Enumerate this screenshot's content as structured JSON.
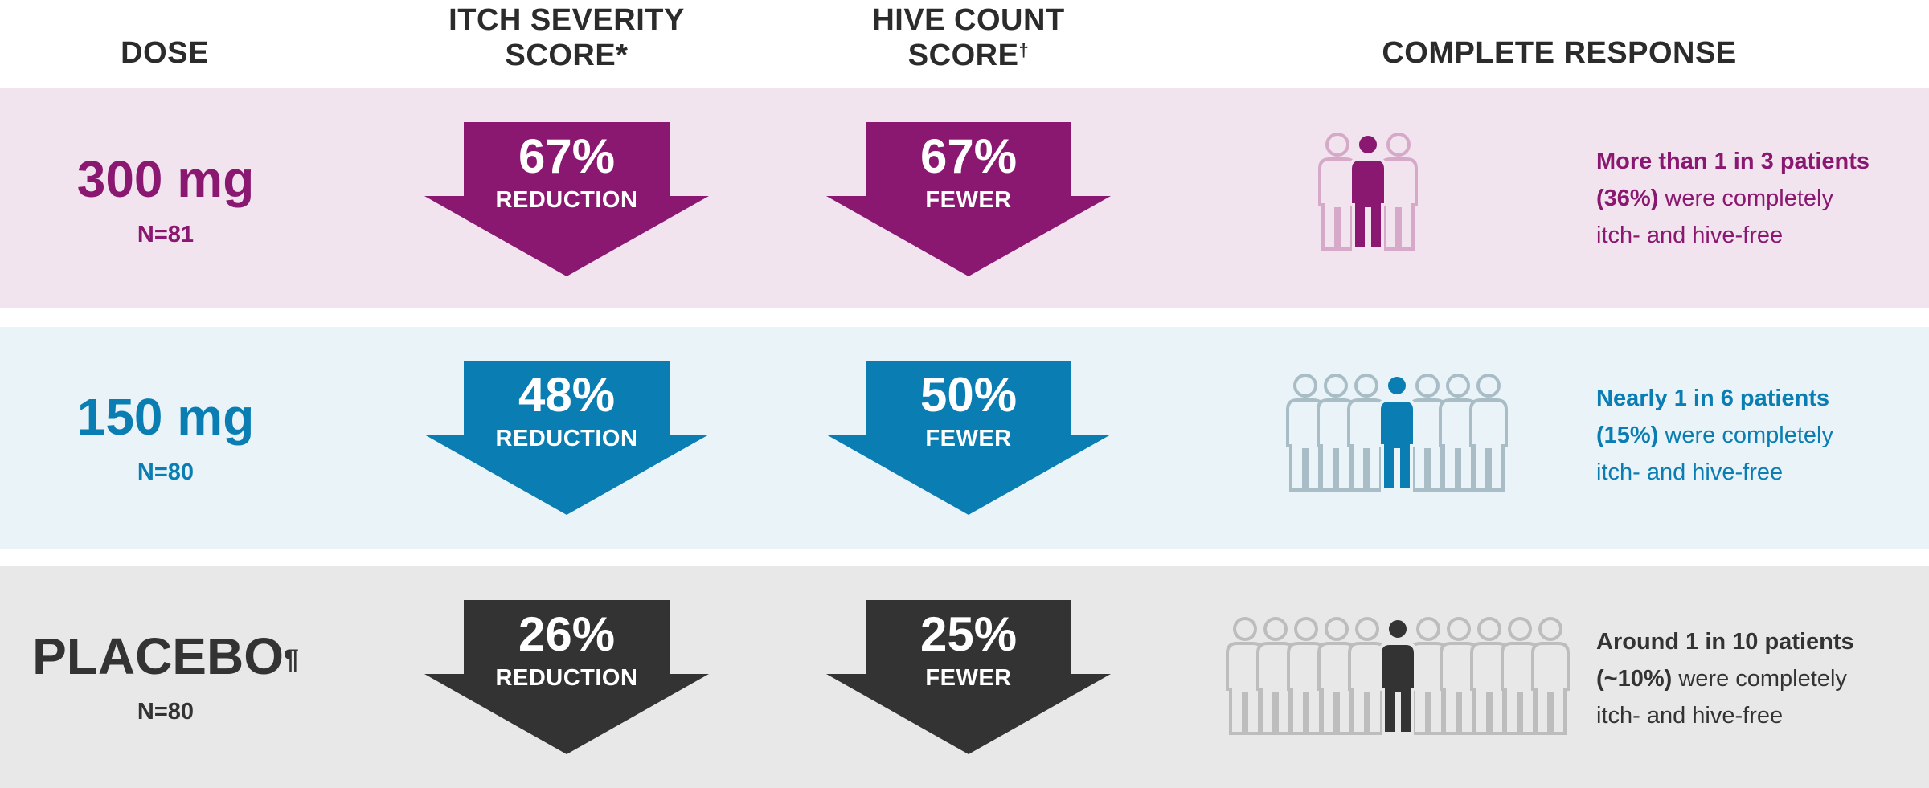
{
  "headers": {
    "dose": "DOSE",
    "itch_line1": "ITCH SEVERITY",
    "itch_line2": "SCORE",
    "itch_mark": "*",
    "hive_line1": "HIVE COUNT",
    "hive_line2": "SCORE",
    "hive_mark": "†",
    "complete": "COMPLETE RESPONSE"
  },
  "rows": [
    {
      "dose": "300 mg",
      "dose_mark": "",
      "n": "N=81",
      "itch_pct": "67%",
      "itch_label": "REDUCTION",
      "hive_pct": "67%",
      "hive_label": "FEWER",
      "resp_bold1": "More than 1 in 3 patients",
      "resp_bold2": "(36%)",
      "resp_text2": " were completely",
      "resp_text3": "itch- and hive-free",
      "color": "#8a1870",
      "bg": "#f1e4ef",
      "light": "#d6a9c9"
    },
    {
      "dose": "150 mg",
      "dose_mark": "",
      "n": "N=80",
      "itch_pct": "48%",
      "itch_label": "REDUCTION",
      "hive_pct": "50%",
      "hive_label": "FEWER",
      "resp_bold1": "Nearly 1 in 6 patients",
      "resp_bold2": "(15%)",
      "resp_text2": " were completely",
      "resp_text3": "itch- and hive-free",
      "color": "#0a7db3",
      "bg": "#eaf4f8",
      "light": "#a9bdc7"
    },
    {
      "dose": "PLACEBO",
      "dose_mark": "¶",
      "n": "N=80",
      "itch_pct": "26%",
      "itch_label": "REDUCTION",
      "hive_pct": "25%",
      "hive_label": "FEWER",
      "resp_bold1": "Around 1 in 10 patients",
      "resp_bold2": "(~10%)",
      "resp_text2": " were completely",
      "resp_text3": "itch- and hive-free",
      "color": "#333333",
      "bg": "#e8e8e8",
      "light": "#bdbdbd"
    }
  ],
  "chart_data": {
    "type": "table",
    "columns": [
      "DOSE",
      "ITCH SEVERITY SCORE*",
      "HIVE COUNT SCORE†",
      "COMPLETE RESPONSE"
    ],
    "rows": [
      {
        "dose": "300 mg",
        "n": 81,
        "itch_reduction_pct": 67,
        "hive_fewer_pct": 67,
        "complete_response_pct": 36,
        "ratio": "More than 1 in 3",
        "icon_count": 3
      },
      {
        "dose": "150 mg",
        "n": 80,
        "itch_reduction_pct": 48,
        "hive_fewer_pct": 50,
        "complete_response_pct": 15,
        "ratio": "Nearly 1 in 6",
        "icon_count": 7
      },
      {
        "dose": "PLACEBO",
        "n": 80,
        "itch_reduction_pct": 26,
        "hive_fewer_pct": 25,
        "complete_response_pct": 10,
        "ratio": "Around 1 in 10",
        "icon_count": 11
      }
    ]
  }
}
